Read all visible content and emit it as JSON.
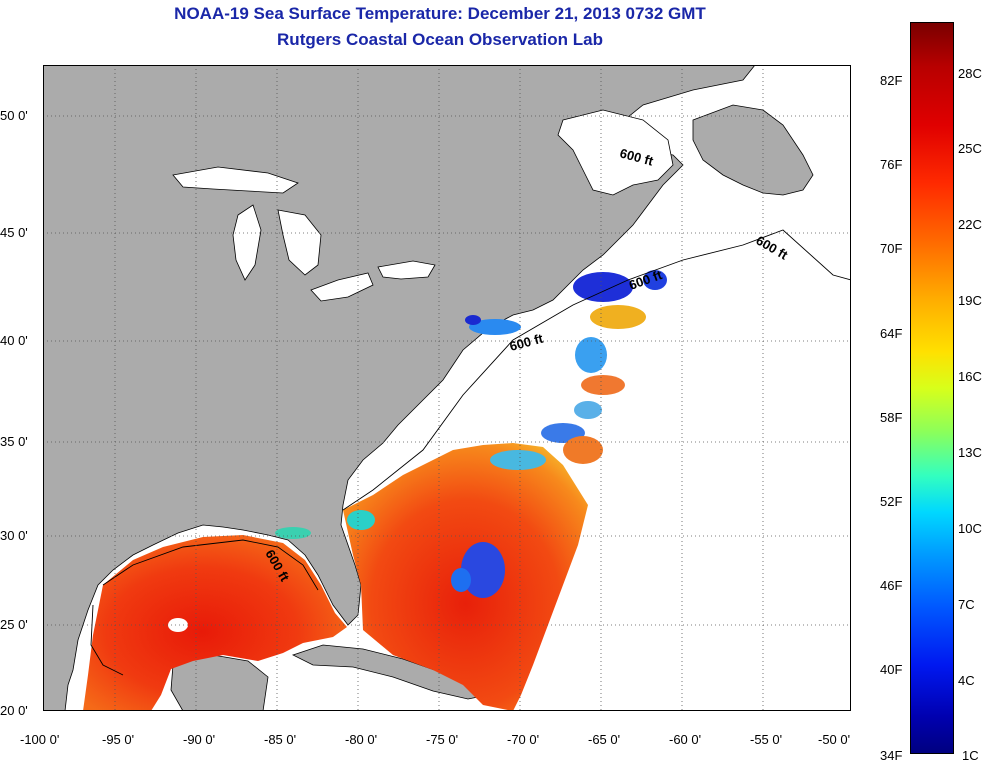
{
  "title": {
    "line1": "NOAA-19 Sea Surface Temperature:  December 21, 2013 0732 GMT",
    "line2": "Rutgers Coastal Ocean Observation Lab"
  },
  "axes": {
    "x_ticks": [
      "-100 0'",
      "-95 0'",
      "-90 0'",
      "-85 0'",
      "-80 0'",
      "-75 0'",
      "-70 0'",
      "-65 0'",
      "-60 0'",
      "-55 0'",
      "-50 0'"
    ],
    "y_ticks": [
      "50 0'",
      "45 0'",
      "40 0'",
      "35 0'",
      "30 0'",
      "25 0'",
      "20 0'"
    ]
  },
  "contour_labels": [
    "600 ft",
    "600 ft",
    "600 ft",
    "600 ft"
  ],
  "colorbar": {
    "fahrenheit": [
      "82F",
      "76F",
      "70F",
      "64F",
      "58F",
      "52F",
      "46F",
      "40F",
      "34F"
    ],
    "celsius": [
      "28C",
      "25C",
      "22C",
      "19C",
      "16C",
      "13C",
      "10C",
      "7C",
      "4C",
      "1C"
    ]
  },
  "colors": {
    "title": "#1a27a8",
    "land": "#ababab",
    "water_no_data": "#ffffff",
    "warm": "#e8280c",
    "cold": "#1e3cd8"
  }
}
